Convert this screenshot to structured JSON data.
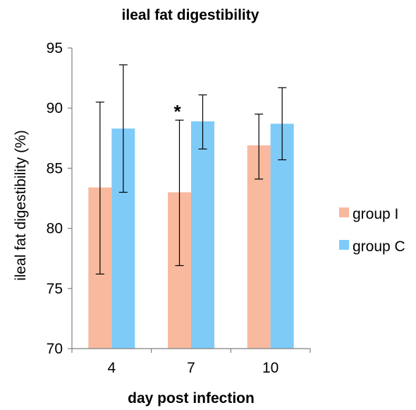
{
  "chart_data": {
    "type": "bar",
    "title": "ileal fat digestibility",
    "xlabel": "day post infection",
    "ylabel": "ileal fat digestibility (%)",
    "categories": [
      "4",
      "7",
      "10"
    ],
    "ylim": [
      70,
      95
    ],
    "yticks": [
      70,
      75,
      80,
      85,
      90,
      95
    ],
    "grid": false,
    "legend": "right",
    "series": [
      {
        "name": "group I",
        "color": "#f8b99e",
        "values": [
          83.4,
          83.0,
          86.9
        ],
        "err_low": [
          76.2,
          76.9,
          84.1
        ],
        "err_high": [
          90.5,
          89.0,
          89.5
        ]
      },
      {
        "name": "group C",
        "color": "#7ecbf8",
        "values": [
          88.3,
          88.9,
          88.7
        ],
        "err_low": [
          83.0,
          86.6,
          85.7
        ],
        "err_high": [
          93.6,
          91.1,
          91.7
        ]
      }
    ],
    "annotations": [
      {
        "category": "7",
        "series": "group I",
        "text": "*"
      }
    ]
  }
}
